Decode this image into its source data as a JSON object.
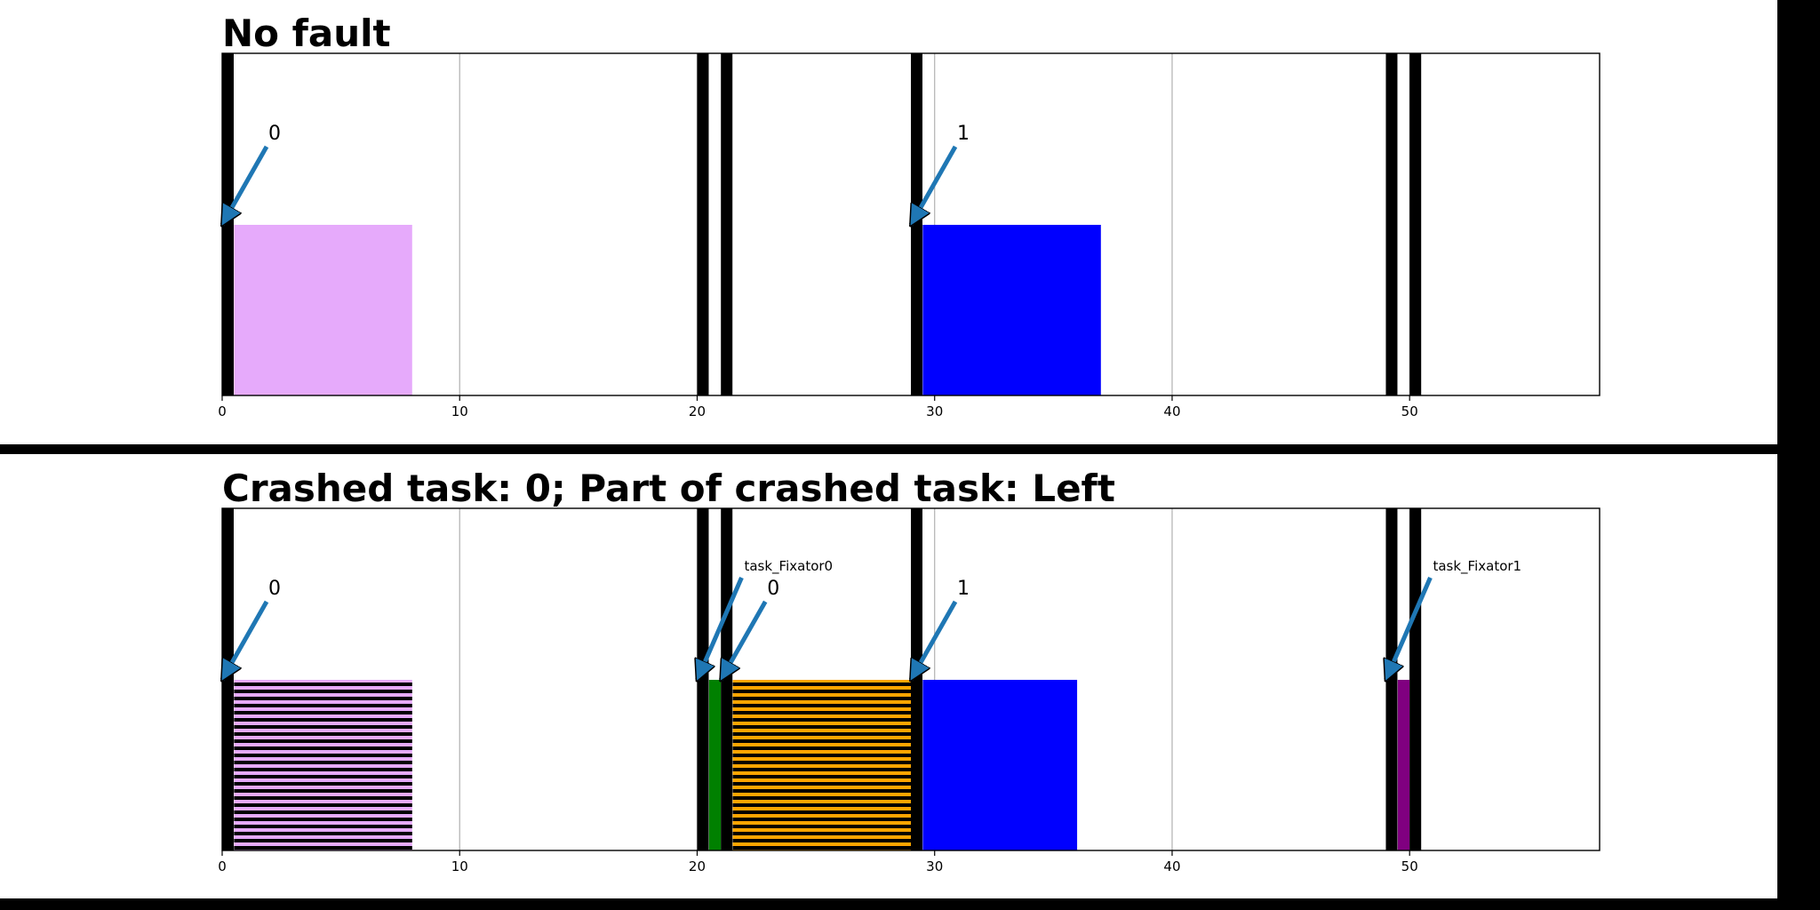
{
  "chart_data": [
    {
      "type": "bar",
      "title": "No fault",
      "xlim": [
        0,
        58
      ],
      "xticks": [
        0,
        10,
        20,
        30,
        40,
        50
      ],
      "grid": true,
      "separators": [
        0,
        20,
        21,
        29,
        49,
        50
      ],
      "bars": [
        {
          "start": 0.5,
          "end": 8,
          "color": "#e6aafb",
          "hatch": false
        },
        {
          "start": 29.5,
          "end": 37,
          "color": "#0000ff",
          "hatch": false
        }
      ],
      "annotations": [
        {
          "text": "0",
          "x": 0,
          "small": false
        },
        {
          "text": "1",
          "x": 29,
          "small": false
        }
      ]
    },
    {
      "type": "bar",
      "title": "Crashed task: 0; Part of crashed task: Left",
      "xlim": [
        0,
        58
      ],
      "xticks": [
        0,
        10,
        20,
        30,
        40,
        50
      ],
      "grid": true,
      "separators": [
        0,
        20,
        21,
        29,
        49,
        50
      ],
      "bars": [
        {
          "start": 0.5,
          "end": 8,
          "color": "#e6aafb",
          "hatch": true
        },
        {
          "start": 20.5,
          "end": 21,
          "color": "#008000",
          "hatch": false
        },
        {
          "start": 21.5,
          "end": 29,
          "color": "#ffa500",
          "hatch": true
        },
        {
          "start": 29.5,
          "end": 36,
          "color": "#0000ff",
          "hatch": false
        },
        {
          "start": 49.5,
          "end": 50,
          "color": "#800080",
          "hatch": false
        }
      ],
      "annotations": [
        {
          "text": "0",
          "x": 0,
          "small": false
        },
        {
          "text": "task_Fixator0",
          "x": 20,
          "small": true
        },
        {
          "text": "0",
          "x": 21,
          "small": false
        },
        {
          "text": "1",
          "x": 29,
          "small": false
        },
        {
          "text": "task_Fixator1",
          "x": 49,
          "small": true
        }
      ]
    }
  ]
}
